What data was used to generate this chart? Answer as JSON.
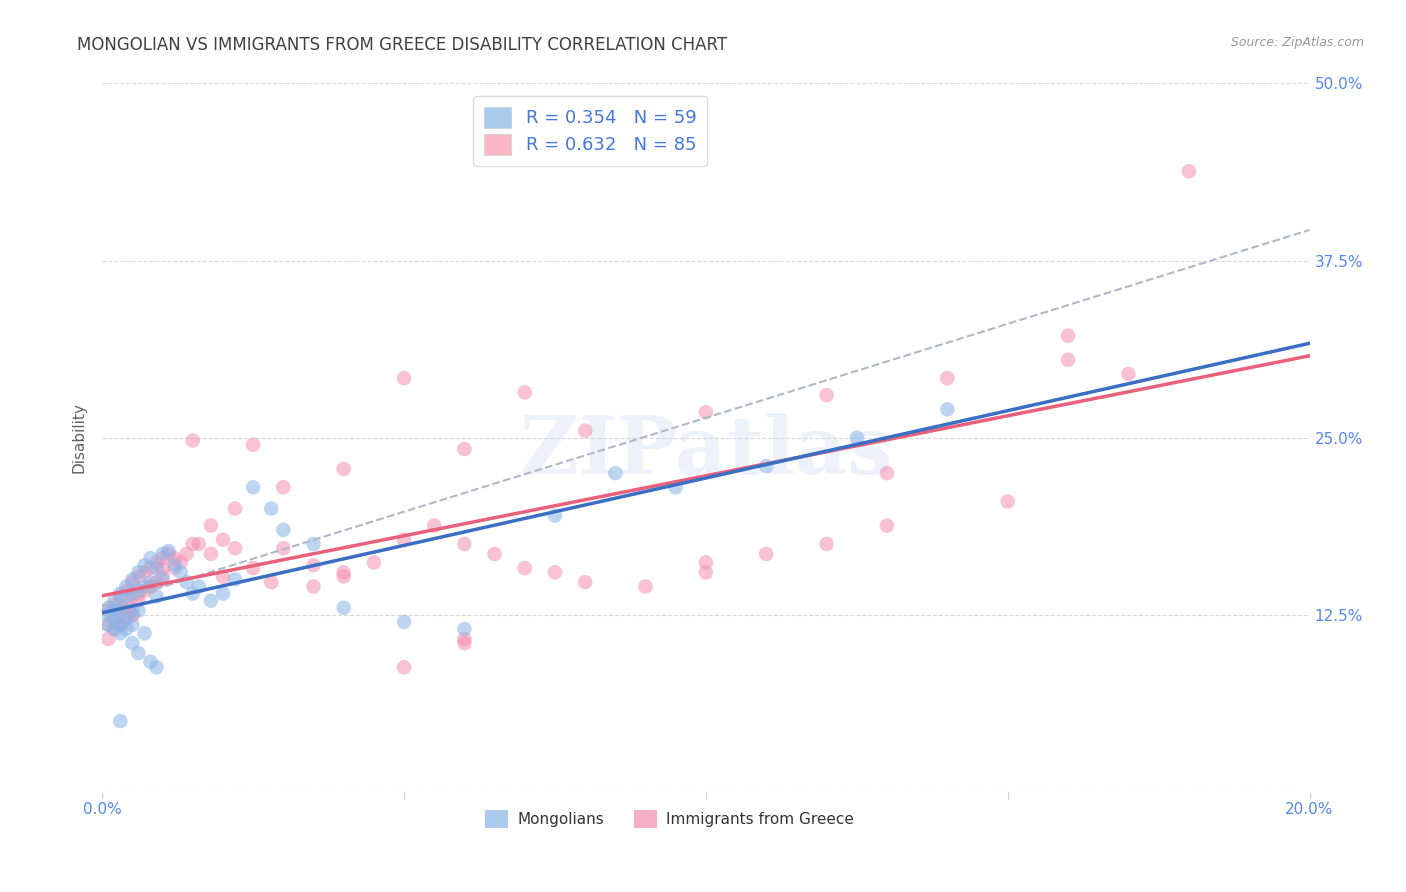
{
  "title": "MONGOLIAN VS IMMIGRANTS FROM GREECE DISABILITY CORRELATION CHART",
  "source": "Source: ZipAtlas.com",
  "ylabel": "Disability",
  "x_min": 0.0,
  "x_max": 0.2,
  "y_min": 0.0,
  "y_max": 0.5,
  "x_ticks": [
    0.0,
    0.05,
    0.1,
    0.15,
    0.2
  ],
  "y_ticks": [
    0.0,
    0.125,
    0.25,
    0.375,
    0.5
  ],
  "y_tick_labels": [
    "",
    "12.5%",
    "25.0%",
    "37.5%",
    "50.0%"
  ],
  "legend_r1": "0.354",
  "legend_n1": "59",
  "legend_r2": "0.632",
  "legend_n2": "85",
  "legend_label_mongolian": "Mongolians",
  "legend_label_greece": "Immigrants from Greece",
  "watermark": "ZIPatlas",
  "blue_scatter_color": "#89b4e8",
  "pink_scatter_color": "#f48fb1",
  "blue_line_color": "#3a6fc4",
  "pink_line_color": "#e8607a",
  "dashed_line_color": "#b0b8c8",
  "legend_patch_blue": "#aacbf0",
  "legend_patch_pink": "#f9b8c8",
  "background_color": "#ffffff",
  "grid_color": "#d0d0d0",
  "title_color": "#404040",
  "ylabel_color": "#606060",
  "tick_color_y": "#5588ee",
  "tick_color_x": "#5588ee",
  "legend_text_color": "#333333",
  "legend_rn_color": "#4477dd",
  "source_color": "#999999",
  "mongolian_x": [
    0.001,
    0.001,
    0.001,
    0.002,
    0.002,
    0.002,
    0.002,
    0.003,
    0.003,
    0.003,
    0.003,
    0.003,
    0.004,
    0.004,
    0.004,
    0.004,
    0.005,
    0.005,
    0.005,
    0.005,
    0.006,
    0.006,
    0.006,
    0.007,
    0.007,
    0.008,
    0.008,
    0.009,
    0.009,
    0.01,
    0.01,
    0.011,
    0.012,
    0.013,
    0.014,
    0.015,
    0.016,
    0.018,
    0.02,
    0.022,
    0.025,
    0.028,
    0.03,
    0.035,
    0.04,
    0.05,
    0.06,
    0.075,
    0.085,
    0.095,
    0.11,
    0.125,
    0.14,
    0.005,
    0.006,
    0.007,
    0.008,
    0.009,
    0.003
  ],
  "mongolian_y": [
    0.13,
    0.125,
    0.118,
    0.128,
    0.135,
    0.122,
    0.115,
    0.14,
    0.132,
    0.118,
    0.125,
    0.112,
    0.145,
    0.138,
    0.122,
    0.115,
    0.15,
    0.14,
    0.128,
    0.118,
    0.155,
    0.142,
    0.128,
    0.16,
    0.145,
    0.165,
    0.148,
    0.158,
    0.138,
    0.168,
    0.15,
    0.17,
    0.16,
    0.155,
    0.148,
    0.14,
    0.145,
    0.135,
    0.14,
    0.15,
    0.215,
    0.2,
    0.185,
    0.175,
    0.13,
    0.12,
    0.115,
    0.195,
    0.225,
    0.215,
    0.23,
    0.25,
    0.27,
    0.105,
    0.098,
    0.112,
    0.092,
    0.088,
    0.05
  ],
  "greece_x": [
    0.001,
    0.001,
    0.001,
    0.002,
    0.002,
    0.002,
    0.003,
    0.003,
    0.003,
    0.004,
    0.004,
    0.004,
    0.005,
    0.005,
    0.005,
    0.006,
    0.006,
    0.007,
    0.007,
    0.008,
    0.008,
    0.009,
    0.009,
    0.01,
    0.01,
    0.011,
    0.012,
    0.013,
    0.014,
    0.015,
    0.016,
    0.018,
    0.02,
    0.022,
    0.025,
    0.028,
    0.03,
    0.035,
    0.04,
    0.045,
    0.05,
    0.055,
    0.06,
    0.065,
    0.07,
    0.04,
    0.05,
    0.06,
    0.07,
    0.08,
    0.09,
    0.1,
    0.11,
    0.12,
    0.13,
    0.15,
    0.17,
    0.02,
    0.035,
    0.06,
    0.025,
    0.05,
    0.075,
    0.1,
    0.13,
    0.16,
    0.18,
    0.005,
    0.003,
    0.004,
    0.006,
    0.008,
    0.01,
    0.012,
    0.015,
    0.018,
    0.022,
    0.03,
    0.04,
    0.06,
    0.08,
    0.1,
    0.12,
    0.14,
    0.16
  ],
  "greece_y": [
    0.128,
    0.118,
    0.108,
    0.132,
    0.122,
    0.115,
    0.138,
    0.128,
    0.118,
    0.142,
    0.132,
    0.122,
    0.148,
    0.138,
    0.125,
    0.152,
    0.14,
    0.155,
    0.142,
    0.158,
    0.145,
    0.162,
    0.148,
    0.165,
    0.152,
    0.168,
    0.158,
    0.162,
    0.168,
    0.248,
    0.175,
    0.168,
    0.178,
    0.172,
    0.158,
    0.148,
    0.172,
    0.16,
    0.152,
    0.162,
    0.178,
    0.188,
    0.175,
    0.168,
    0.282,
    0.155,
    0.088,
    0.105,
    0.158,
    0.148,
    0.145,
    0.155,
    0.168,
    0.175,
    0.188,
    0.205,
    0.295,
    0.152,
    0.145,
    0.108,
    0.245,
    0.292,
    0.155,
    0.162,
    0.225,
    0.322,
    0.438,
    0.125,
    0.118,
    0.128,
    0.135,
    0.145,
    0.158,
    0.165,
    0.175,
    0.188,
    0.2,
    0.215,
    0.228,
    0.242,
    0.255,
    0.268,
    0.28,
    0.292,
    0.305
  ]
}
